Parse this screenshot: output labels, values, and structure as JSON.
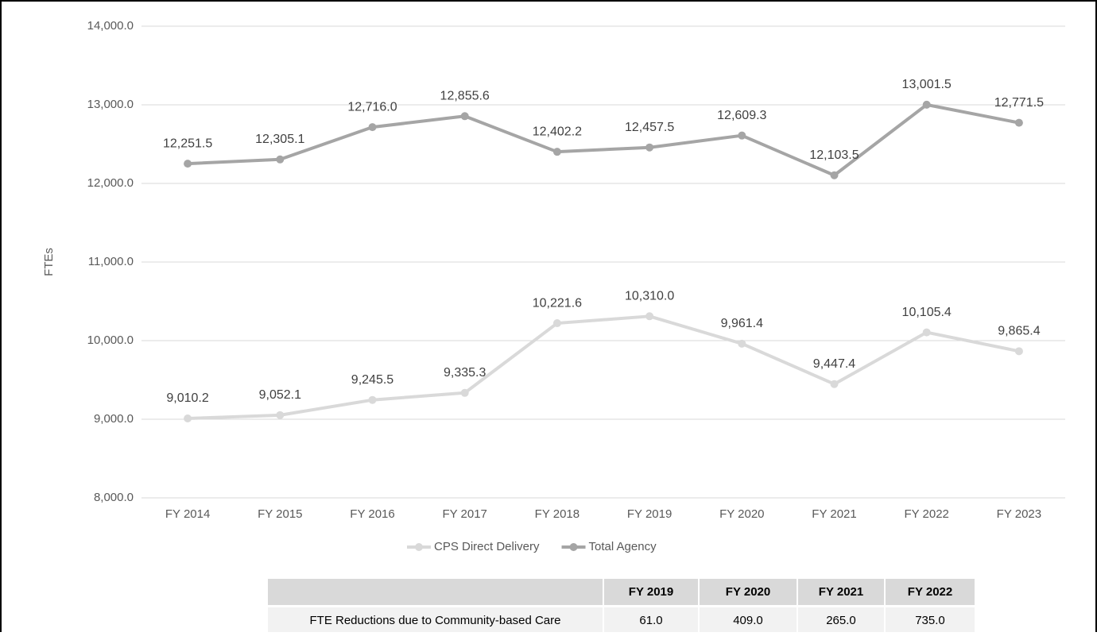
{
  "chart_data": {
    "type": "line",
    "y_label": "FTEs",
    "categories": [
      "FY 2014",
      "FY 2015",
      "FY 2016",
      "FY 2017",
      "FY 2018",
      "FY 2019",
      "FY 2020",
      "FY 2021",
      "FY 2022",
      "FY 2023"
    ],
    "series": [
      {
        "name": "CPS Direct Delivery",
        "color": "#d9d9d9",
        "values": [
          9010.2,
          9052.1,
          9245.5,
          9335.3,
          10221.6,
          10310.0,
          9961.4,
          9447.4,
          10105.4,
          9865.4
        ],
        "value_labels": [
          "9,010.2",
          "9,052.1",
          "9,245.5",
          "9,335.3",
          "10,221.6",
          "10,310.0",
          "9,961.4",
          "9,447.4",
          "10,105.4",
          "9,865.4"
        ]
      },
      {
        "name": "Total Agency",
        "color": "#a5a5a5",
        "values": [
          12251.5,
          12305.1,
          12716.0,
          12855.6,
          12402.2,
          12457.5,
          12609.3,
          12103.5,
          13001.5,
          12771.5
        ],
        "value_labels": [
          "12,251.5",
          "12,305.1",
          "12,716.0",
          "12,855.6",
          "12,402.2",
          "12,457.5",
          "12,609.3",
          "12,103.5",
          "13,001.5",
          "12,771.5"
        ]
      }
    ],
    "ylim": [
      8000,
      14000
    ],
    "yticks": [
      {
        "value": 8000,
        "label": "8,000.0"
      },
      {
        "value": 9000,
        "label": "9,000.0"
      },
      {
        "value": 10000,
        "label": "10,000.0"
      },
      {
        "value": 11000,
        "label": "11,000.0"
      },
      {
        "value": 12000,
        "label": "12,000.0"
      },
      {
        "value": 13000,
        "label": "13,000.0"
      },
      {
        "value": 14000,
        "label": "14,000.0"
      }
    ],
    "grid": true,
    "legend": "bottom"
  },
  "table": {
    "columns": [
      "FY 2019",
      "FY 2020",
      "FY 2021",
      "FY 2022"
    ],
    "rows": [
      {
        "label": "FTE Reductions due to Community-based Care",
        "cells": [
          "61.0",
          "409.0",
          "265.0",
          "735.0"
        ]
      }
    ]
  }
}
